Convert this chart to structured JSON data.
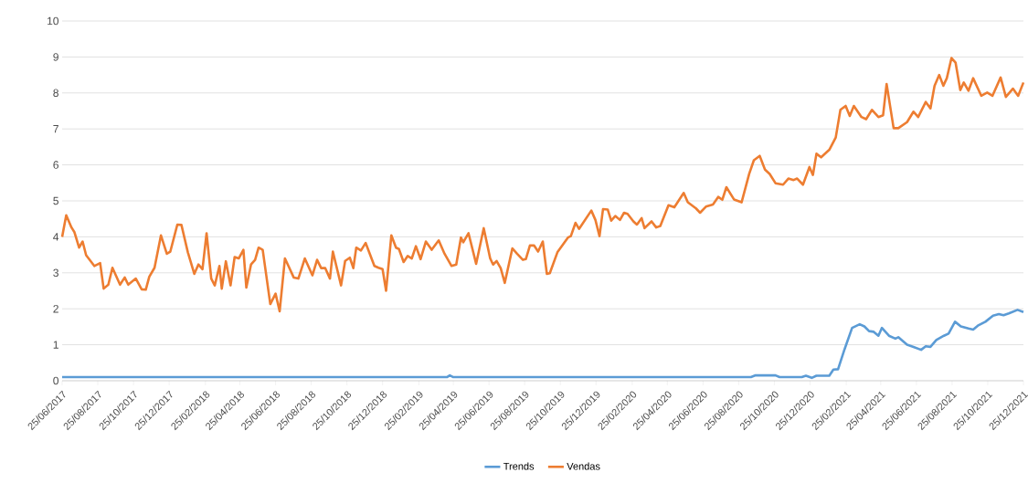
{
  "chart_data": {
    "type": "line",
    "xlim": [
      "2017-06-25",
      "2021-12-25"
    ],
    "xticks": [
      {
        "value": "2017-06-25",
        "label": "25/06/2017"
      },
      {
        "value": "2017-08-25",
        "label": "25/08/2017"
      },
      {
        "value": "2017-10-25",
        "label": "25/10/2017"
      },
      {
        "value": "2017-12-25",
        "label": "25/12/2017"
      },
      {
        "value": "2018-02-25",
        "label": "25/02/2018"
      },
      {
        "value": "2018-04-25",
        "label": "25/04/2018"
      },
      {
        "value": "2018-06-25",
        "label": "25/06/2018"
      },
      {
        "value": "2018-08-25",
        "label": "25/08/2018"
      },
      {
        "value": "2018-10-25",
        "label": "25/10/2018"
      },
      {
        "value": "2018-12-25",
        "label": "25/12/2018"
      },
      {
        "value": "2019-02-25",
        "label": "25/02/2019"
      },
      {
        "value": "2019-04-25",
        "label": "25/04/2019"
      },
      {
        "value": "2019-06-25",
        "label": "25/06/2019"
      },
      {
        "value": "2019-08-25",
        "label": "25/08/2019"
      },
      {
        "value": "2019-10-25",
        "label": "25/10/2019"
      },
      {
        "value": "2019-12-25",
        "label": "25/12/2019"
      },
      {
        "value": "2020-02-25",
        "label": "25/02/2020"
      },
      {
        "value": "2020-04-25",
        "label": "25/04/2020"
      },
      {
        "value": "2020-06-25",
        "label": "25/06/2020"
      },
      {
        "value": "2020-08-25",
        "label": "25/08/2020"
      },
      {
        "value": "2020-10-25",
        "label": "25/10/2020"
      },
      {
        "value": "2020-12-25",
        "label": "25/12/2020"
      },
      {
        "value": "2021-02-25",
        "label": "25/02/2021"
      },
      {
        "value": "2021-04-25",
        "label": "25/04/2021"
      },
      {
        "value": "2021-06-25",
        "label": "25/06/2021"
      },
      {
        "value": "2021-08-25",
        "label": "25/08/2021"
      },
      {
        "value": "2021-10-25",
        "label": "25/10/2021"
      },
      {
        "value": "2021-12-25",
        "label": "25/12/2021"
      }
    ],
    "ylim": [
      0,
      10
    ],
    "yticks": [
      0,
      1,
      2,
      3,
      4,
      5,
      6,
      7,
      8,
      9,
      10
    ],
    "grid": "y",
    "legend": "bottom",
    "series": [
      {
        "name": "Trends",
        "color": "#5b9bd5",
        "x": [
          "2017-06-25",
          "2019-04-14",
          "2019-04-19",
          "2019-04-25",
          "2020-09-15",
          "2020-09-23",
          "2020-10-27",
          "2020-11-03",
          "2020-12-11",
          "2020-12-18",
          "2020-12-28",
          "2021-01-05",
          "2021-01-27",
          "2021-02-03",
          "2021-02-11",
          "2021-02-22",
          "2021-03-07",
          "2021-03-20",
          "2021-03-28",
          "2021-04-05",
          "2021-04-13",
          "2021-04-21",
          "2021-04-27",
          "2021-05-09",
          "2021-05-20",
          "2021-05-25",
          "2021-06-09",
          "2021-06-20",
          "2021-07-03",
          "2021-07-11",
          "2021-07-19",
          "2021-07-29",
          "2021-08-11",
          "2021-08-19",
          "2021-08-30",
          "2021-09-09",
          "2021-09-22",
          "2021-09-30",
          "2021-10-08",
          "2021-10-21",
          "2021-11-03",
          "2021-11-13",
          "2021-11-21",
          "2021-11-30",
          "2021-12-15",
          "2021-12-25"
        ],
        "values": [
          0.1,
          0.1,
          0.15,
          0.1,
          0.1,
          0.15,
          0.15,
          0.1,
          0.1,
          0.14,
          0.08,
          0.14,
          0.14,
          0.31,
          0.32,
          0.87,
          1.47,
          1.57,
          1.51,
          1.38,
          1.36,
          1.25,
          1.47,
          1.25,
          1.17,
          1.21,
          1.0,
          0.94,
          0.86,
          0.96,
          0.94,
          1.13,
          1.25,
          1.31,
          1.64,
          1.51,
          1.45,
          1.42,
          1.53,
          1.64,
          1.81,
          1.85,
          1.82,
          1.87,
          1.97,
          1.91
        ]
      },
      {
        "name": "Vendas",
        "color": "#ed7d31",
        "x": [
          "2017-06-25",
          "2017-07-02",
          "2017-07-11",
          "2017-07-16",
          "2017-07-24",
          "2017-07-30",
          "2017-08-05",
          "2017-08-19",
          "2017-08-29",
          "2017-09-04",
          "2017-09-12",
          "2017-09-19",
          "2017-10-02",
          "2017-10-10",
          "2017-10-16",
          "2017-10-29",
          "2017-11-08",
          "2017-11-15",
          "2017-11-21",
          "2017-11-30",
          "2017-12-11",
          "2017-12-21",
          "2017-12-27",
          "2018-01-08",
          "2018-01-15",
          "2018-01-26",
          "2018-02-06",
          "2018-02-13",
          "2018-02-20",
          "2018-02-27",
          "2018-03-07",
          "2018-03-13",
          "2018-03-21",
          "2018-03-25",
          "2018-04-01",
          "2018-04-09",
          "2018-04-16",
          "2018-04-23",
          "2018-05-01",
          "2018-05-06",
          "2018-05-14",
          "2018-05-21",
          "2018-05-27",
          "2018-06-03",
          "2018-06-16",
          "2018-06-25",
          "2018-07-02",
          "2018-07-11",
          "2018-07-17",
          "2018-07-26",
          "2018-08-03",
          "2018-08-14",
          "2018-08-27",
          "2018-09-04",
          "2018-09-11",
          "2018-09-18",
          "2018-09-26",
          "2018-10-01",
          "2018-10-15",
          "2018-10-22",
          "2018-10-30",
          "2018-11-05",
          "2018-11-10",
          "2018-11-18",
          "2018-11-26",
          "2018-12-11",
          "2018-12-18",
          "2018-12-25",
          "2018-12-31",
          "2019-01-09",
          "2019-01-17",
          "2019-01-22",
          "2019-01-30",
          "2019-02-06",
          "2019-02-13",
          "2019-02-20",
          "2019-02-28",
          "2019-03-09",
          "2019-03-19",
          "2019-03-31",
          "2019-04-10",
          "2019-04-22",
          "2019-04-30",
          "2019-05-08",
          "2019-05-12",
          "2019-05-21",
          "2019-06-03",
          "2019-06-16",
          "2019-06-27",
          "2019-07-02",
          "2019-07-08",
          "2019-07-15",
          "2019-07-22",
          "2019-08-04",
          "2019-08-12",
          "2019-08-22",
          "2019-08-27",
          "2019-09-03",
          "2019-09-10",
          "2019-09-17",
          "2019-09-25",
          "2019-10-02",
          "2019-10-07",
          "2019-10-20",
          "2019-11-07",
          "2019-11-12",
          "2019-11-20",
          "2019-11-26",
          "2019-12-17",
          "2019-12-24",
          "2019-12-31",
          "2020-01-06",
          "2020-01-14",
          "2020-01-20",
          "2020-01-27",
          "2020-02-04",
          "2020-02-11",
          "2020-02-17",
          "2020-02-27",
          "2020-03-04",
          "2020-03-12",
          "2020-03-17",
          "2020-03-29",
          "2020-04-06",
          "2020-04-13",
          "2020-04-27",
          "2020-05-07",
          "2020-05-23",
          "2020-05-30",
          "2020-06-13",
          "2020-06-20",
          "2020-06-30",
          "2020-07-12",
          "2020-07-21",
          "2020-07-28",
          "2020-08-04",
          "2020-08-17",
          "2020-08-30",
          "2020-09-12",
          "2020-09-20",
          "2020-09-30",
          "2020-10-09",
          "2020-10-17",
          "2020-10-27",
          "2020-11-09",
          "2020-11-18",
          "2020-11-27",
          "2020-12-03",
          "2020-12-13",
          "2020-12-24",
          "2020-12-30",
          "2021-01-05",
          "2021-01-13",
          "2021-01-27",
          "2021-02-07",
          "2021-02-15",
          "2021-02-24",
          "2021-03-03",
          "2021-03-10",
          "2021-03-23",
          "2021-03-31",
          "2021-04-10",
          "2021-04-21",
          "2021-04-29",
          "2021-05-05",
          "2021-05-17",
          "2021-05-25",
          "2021-06-09",
          "2021-06-20",
          "2021-06-28",
          "2021-07-11",
          "2021-07-19",
          "2021-07-26",
          "2021-08-03",
          "2021-08-10",
          "2021-08-16",
          "2021-08-24",
          "2021-08-31",
          "2021-09-08",
          "2021-09-14",
          "2021-09-22",
          "2021-09-30",
          "2021-10-14",
          "2021-10-24",
          "2021-11-02",
          "2021-11-16",
          "2021-11-25",
          "2021-12-07",
          "2021-12-16",
          "2021-12-25"
        ],
        "values": [
          4.0,
          4.6,
          4.26,
          4.13,
          3.7,
          3.87,
          3.49,
          3.19,
          3.27,
          2.56,
          2.67,
          3.14,
          2.67,
          2.87,
          2.67,
          2.84,
          2.54,
          2.53,
          2.89,
          3.14,
          4.04,
          3.53,
          3.59,
          4.34,
          4.33,
          3.57,
          2.97,
          3.23,
          3.1,
          4.1,
          2.84,
          2.65,
          3.19,
          2.56,
          3.32,
          2.65,
          3.44,
          3.4,
          3.64,
          2.59,
          3.23,
          3.36,
          3.7,
          3.64,
          2.13,
          2.42,
          1.93,
          3.4,
          3.19,
          2.87,
          2.84,
          3.4,
          2.93,
          3.36,
          3.13,
          3.13,
          2.84,
          3.59,
          2.65,
          3.33,
          3.42,
          3.13,
          3.7,
          3.62,
          3.83,
          3.19,
          3.14,
          3.1,
          2.5,
          4.04,
          3.7,
          3.66,
          3.3,
          3.47,
          3.4,
          3.74,
          3.38,
          3.87,
          3.64,
          3.9,
          3.53,
          3.19,
          3.23,
          3.98,
          3.85,
          4.1,
          3.25,
          4.24,
          3.4,
          3.23,
          3.33,
          3.13,
          2.72,
          3.68,
          3.53,
          3.36,
          3.38,
          3.76,
          3.76,
          3.59,
          3.87,
          2.97,
          2.99,
          3.57,
          3.98,
          4.02,
          4.39,
          4.22,
          4.73,
          4.47,
          4.02,
          4.77,
          4.76,
          4.45,
          4.58,
          4.47,
          4.67,
          4.64,
          4.43,
          4.34,
          4.52,
          4.24,
          4.43,
          4.26,
          4.3,
          4.88,
          4.82,
          5.22,
          4.96,
          4.79,
          4.67,
          4.84,
          4.9,
          5.11,
          5.03,
          5.38,
          5.04,
          4.96,
          5.75,
          6.13,
          6.25,
          5.87,
          5.75,
          5.49,
          5.45,
          5.62,
          5.58,
          5.62,
          5.45,
          5.94,
          5.72,
          6.31,
          6.21,
          6.42,
          6.76,
          7.53,
          7.64,
          7.36,
          7.64,
          7.33,
          7.27,
          7.53,
          7.33,
          7.38,
          8.25,
          7.02,
          7.02,
          7.19,
          7.48,
          7.33,
          7.75,
          7.57,
          8.2,
          8.5,
          8.2,
          8.41,
          8.97,
          8.84,
          8.08,
          8.29,
          8.06,
          8.41,
          7.92,
          8.01,
          7.92,
          8.43,
          7.89,
          8.12,
          7.92,
          8.29
        ]
      }
    ]
  }
}
